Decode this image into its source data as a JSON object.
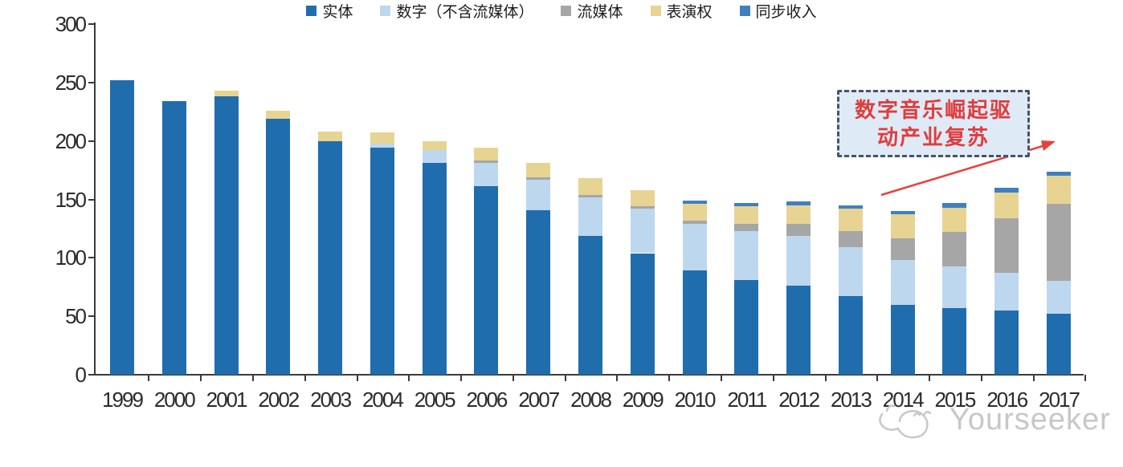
{
  "chart_data": {
    "type": "bar",
    "stacked": true,
    "title": "",
    "xlabel": "",
    "ylabel": "",
    "ylim": [
      0,
      300
    ],
    "yticks": [
      0,
      50,
      100,
      150,
      200,
      250,
      300
    ],
    "grid": false,
    "legend_position": "bottom",
    "categories": [
      "1999",
      "2000",
      "2001",
      "2002",
      "2003",
      "2004",
      "2005",
      "2006",
      "2007",
      "2008",
      "2009",
      "2010",
      "2011",
      "2012",
      "2013",
      "2014",
      "2015",
      "2016",
      "2017"
    ],
    "series": [
      {
        "name": "实体",
        "color": "#1f6dad",
        "values": [
          252,
          234,
          238,
          219,
          200,
          194,
          181,
          161,
          141,
          119,
          104,
          89,
          81,
          76,
          67,
          60,
          57,
          55,
          52
        ]
      },
      {
        "name": "数字（不含流媒体）",
        "color": "#bdd7ee",
        "values": [
          0,
          0,
          0,
          0,
          0,
          4,
          11,
          20,
          26,
          33,
          38,
          40,
          42,
          43,
          42,
          38,
          36,
          32,
          28
        ]
      },
      {
        "name": "流媒体",
        "color": "#a6a6a6",
        "values": [
          0,
          0,
          0,
          0,
          0,
          0,
          0,
          2,
          2,
          2,
          2,
          3,
          6,
          10,
          14,
          19,
          29,
          47,
          66
        ]
      },
      {
        "name": "表演权",
        "color": "#e7d493",
        "values": [
          0,
          0,
          5,
          7,
          8,
          9,
          8,
          11,
          12,
          14,
          14,
          14,
          15,
          16,
          19,
          20,
          21,
          22,
          24
        ]
      },
      {
        "name": "同步收入",
        "color": "#3f7fc1",
        "values": [
          0,
          0,
          0,
          0,
          0,
          0,
          0,
          0,
          0,
          0,
          0,
          3,
          3,
          3,
          3,
          3,
          4,
          4,
          4
        ]
      }
    ]
  },
  "annotation": {
    "line1": "数字音乐崛起驱",
    "line2": "动产业复苏",
    "text_color": "#e03c3c",
    "border_color": "#44546a",
    "fill_color": "#deeaf6",
    "arrow_color": "#e8403c"
  },
  "watermark": {
    "text": "Yourseeker",
    "color": "#c7c7c7"
  }
}
